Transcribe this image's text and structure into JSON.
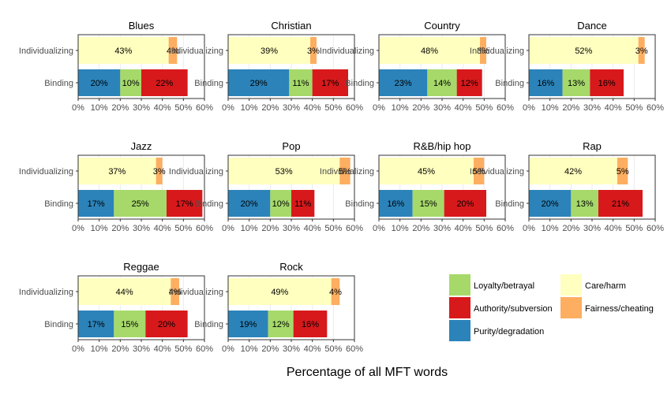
{
  "chart_data": {
    "type": "bar",
    "orientation": "horizontal",
    "stacked": true,
    "xlabel": "Percentage of all MFT words",
    "categories": [
      "Individualizing",
      "Binding"
    ],
    "x_ticks": [
      "0%",
      "10%",
      "20%",
      "30%",
      "40%",
      "50%",
      "60%"
    ],
    "xlim": [
      0,
      60
    ],
    "grid": true,
    "legend_position": "bottom-right",
    "colors": {
      "Care/harm": "#FFFFBF",
      "Fairness/cheating": "#FDAE61",
      "Loyalty/betrayal": "#A6D96A",
      "Authority/subversion": "#D7191C",
      "Purity/degradation": "#2B83BA"
    },
    "legend": [
      {
        "name": "Loyalty/betrayal",
        "color": "#A6D96A"
      },
      {
        "name": "Authority/subversion",
        "color": "#D7191C"
      },
      {
        "name": "Purity/degradation",
        "color": "#2B83BA"
      },
      {
        "name": "Care/harm",
        "color": "#FFFFBF"
      },
      {
        "name": "Fairness/cheating",
        "color": "#FDAE61"
      }
    ],
    "panels": [
      {
        "title": "Blues",
        "Individualizing": [
          {
            "name": "Care/harm",
            "value": 43,
            "label": "43%"
          },
          {
            "name": "Fairness/cheating",
            "value": 4,
            "label": "4%"
          }
        ],
        "Binding": [
          {
            "name": "Purity/degradation",
            "value": 20,
            "label": "20%"
          },
          {
            "name": "Loyalty/betrayal",
            "value": 10,
            "label": "10%"
          },
          {
            "name": "Authority/subversion",
            "value": 22,
            "label": "22%"
          }
        ]
      },
      {
        "title": "Christian",
        "Individualizing": [
          {
            "name": "Care/harm",
            "value": 39,
            "label": "39%"
          },
          {
            "name": "Fairness/cheating",
            "value": 3,
            "label": "3%"
          }
        ],
        "Binding": [
          {
            "name": "Purity/degradation",
            "value": 29,
            "label": "29%"
          },
          {
            "name": "Loyalty/betrayal",
            "value": 11,
            "label": "11%"
          },
          {
            "name": "Authority/subversion",
            "value": 17,
            "label": "17%"
          }
        ]
      },
      {
        "title": "Country",
        "Individualizing": [
          {
            "name": "Care/harm",
            "value": 48,
            "label": "48%"
          },
          {
            "name": "Fairness/cheating",
            "value": 3,
            "label": "3%"
          }
        ],
        "Binding": [
          {
            "name": "Purity/degradation",
            "value": 23,
            "label": "23%"
          },
          {
            "name": "Loyalty/betrayal",
            "value": 14,
            "label": "14%"
          },
          {
            "name": "Authority/subversion",
            "value": 12,
            "label": "12%"
          }
        ]
      },
      {
        "title": "Dance",
        "Individualizing": [
          {
            "name": "Care/harm",
            "value": 52,
            "label": "52%"
          },
          {
            "name": "Fairness/cheating",
            "value": 3,
            "label": "3%"
          }
        ],
        "Binding": [
          {
            "name": "Purity/degradation",
            "value": 16,
            "label": "16%"
          },
          {
            "name": "Loyalty/betrayal",
            "value": 13,
            "label": "13%"
          },
          {
            "name": "Authority/subversion",
            "value": 16,
            "label": "16%"
          }
        ]
      },
      {
        "title": "Jazz",
        "Individualizing": [
          {
            "name": "Care/harm",
            "value": 37,
            "label": "37%"
          },
          {
            "name": "Fairness/cheating",
            "value": 3,
            "label": "3%"
          }
        ],
        "Binding": [
          {
            "name": "Purity/degradation",
            "value": 17,
            "label": "17%"
          },
          {
            "name": "Loyalty/betrayal",
            "value": 25,
            "label": "25%"
          },
          {
            "name": "Authority/subversion",
            "value": 17,
            "label": "17%"
          }
        ]
      },
      {
        "title": "Pop",
        "Individualizing": [
          {
            "name": "Care/harm",
            "value": 53,
            "label": "53%"
          },
          {
            "name": "Fairness/cheating",
            "value": 5,
            "label": "5%"
          }
        ],
        "Binding": [
          {
            "name": "Purity/degradation",
            "value": 20,
            "label": "20%"
          },
          {
            "name": "Loyalty/betrayal",
            "value": 10,
            "label": "10%"
          },
          {
            "name": "Authority/subversion",
            "value": 11,
            "label": "11%"
          }
        ]
      },
      {
        "title": "R&B/hip hop",
        "Individualizing": [
          {
            "name": "Care/harm",
            "value": 45,
            "label": "45%"
          },
          {
            "name": "Fairness/cheating",
            "value": 5,
            "label": "5%"
          }
        ],
        "Binding": [
          {
            "name": "Purity/degradation",
            "value": 16,
            "label": "16%"
          },
          {
            "name": "Loyalty/betrayal",
            "value": 15,
            "label": "15%"
          },
          {
            "name": "Authority/subversion",
            "value": 20,
            "label": "20%"
          }
        ]
      },
      {
        "title": "Rap",
        "Individualizing": [
          {
            "name": "Care/harm",
            "value": 42,
            "label": "42%"
          },
          {
            "name": "Fairness/cheating",
            "value": 5,
            "label": "5%"
          }
        ],
        "Binding": [
          {
            "name": "Purity/degradation",
            "value": 20,
            "label": "20%"
          },
          {
            "name": "Loyalty/betrayal",
            "value": 13,
            "label": "13%"
          },
          {
            "name": "Authority/subversion",
            "value": 21,
            "label": "21%"
          }
        ]
      },
      {
        "title": "Reggae",
        "Individualizing": [
          {
            "name": "Care/harm",
            "value": 44,
            "label": "44%"
          },
          {
            "name": "Fairness/cheating",
            "value": 4,
            "label": "4%"
          }
        ],
        "Binding": [
          {
            "name": "Purity/degradation",
            "value": 17,
            "label": "17%"
          },
          {
            "name": "Loyalty/betrayal",
            "value": 15,
            "label": "15%"
          },
          {
            "name": "Authority/subversion",
            "value": 20,
            "label": "20%"
          }
        ]
      },
      {
        "title": "Rock",
        "Individualizing": [
          {
            "name": "Care/harm",
            "value": 49,
            "label": "49%"
          },
          {
            "name": "Fairness/cheating",
            "value": 4,
            "label": "4%"
          }
        ],
        "Binding": [
          {
            "name": "Purity/degradation",
            "value": 19,
            "label": "19%"
          },
          {
            "name": "Loyalty/betrayal",
            "value": 12,
            "label": "12%"
          },
          {
            "name": "Authority/subversion",
            "value": 16,
            "label": "16%"
          }
        ]
      }
    ]
  }
}
